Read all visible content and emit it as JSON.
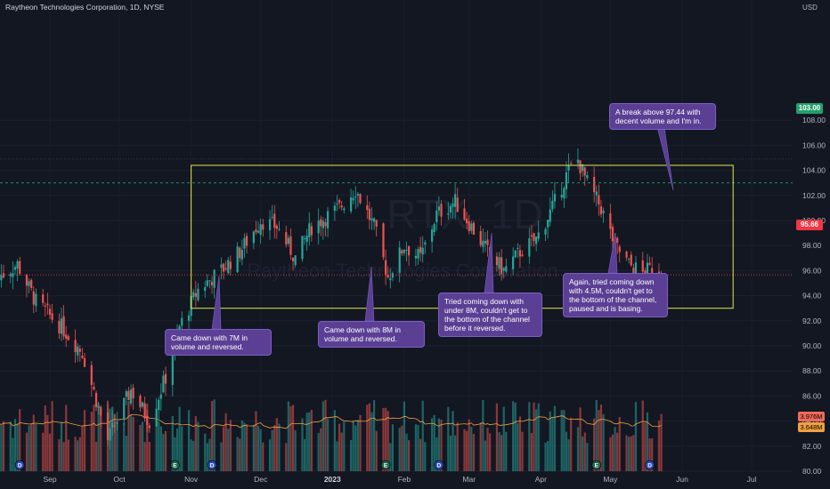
{
  "header": {
    "title": "Raytheon Technologies Corporation, 1D, NYSE"
  },
  "axis": {
    "currency": "USD"
  },
  "watermark": {
    "symbol": "RTX, 1D",
    "name": "Raytheon Technologies Corporation"
  },
  "price_tags": {
    "level": "103.00",
    "last": "95.66"
  },
  "volume_tags": {
    "volume": "3.976M",
    "volume_ma": "3.648M"
  },
  "colors": {
    "up": "#26a69a",
    "down": "#ef5350",
    "box": "#e5e84a",
    "note": "#5b3f94",
    "ma": "#f0a040"
  },
  "annotations": [
    {
      "text": "Came down with 7M in volume and reversed."
    },
    {
      "text": "Came down with 8M in volume and reversed."
    },
    {
      "text": "Tried coming down with under 8M, couldn't get to the bottom of the channel before it reversed."
    },
    {
      "text": "Again, tried coming down with 4.5M, couldn't get to the bottom of the channel, paused and is basing."
    },
    {
      "text": "A break above 97.44 with decent volume and I'm in."
    }
  ],
  "events": [
    {
      "label": "D",
      "x": "2022-08-19"
    },
    {
      "label": "E",
      "x": "2022-10-25"
    },
    {
      "label": "D",
      "x": "2022-11-10"
    },
    {
      "label": "E",
      "x": "2023-01-24"
    },
    {
      "label": "D",
      "x": "2023-02-16"
    },
    {
      "label": "E",
      "x": "2023-04-25"
    },
    {
      "label": "D",
      "x": "2023-05-18"
    }
  ],
  "chart_data": {
    "type": "candlestick",
    "y_ticks": [
      80,
      82,
      84,
      86,
      88,
      90,
      92,
      94,
      96,
      98,
      100,
      102,
      104,
      106,
      108
    ],
    "x_ticks": [
      {
        "label": "Sep",
        "date": "2022-09-01"
      },
      {
        "label": "Oct",
        "date": "2022-10-01"
      },
      {
        "label": "Nov",
        "date": "2022-11-01"
      },
      {
        "label": "Dec",
        "date": "2022-12-01"
      },
      {
        "label": "2023",
        "date": "2023-01-01"
      },
      {
        "label": "Feb",
        "date": "2023-02-01"
      },
      {
        "label": "Mar",
        "date": "2023-03-01"
      },
      {
        "label": "Apr",
        "date": "2023-04-01"
      },
      {
        "label": "May",
        "date": "2023-05-01"
      },
      {
        "label": "Jun",
        "date": "2023-06-01"
      },
      {
        "label": "Jul",
        "date": "2023-07-01"
      }
    ],
    "channel": {
      "top": 104.4,
      "bottom": 93.0,
      "start": "2022-11-01",
      "end": "2023-06-23"
    },
    "horizontal_lines": [
      {
        "price": 103.0
      },
      {
        "price": 95.66
      }
    ],
    "closes": [
      {
        "date": "2022-08-10",
        "close": 95.5
      },
      {
        "date": "2022-08-18",
        "close": 96.5
      },
      {
        "date": "2022-08-26",
        "close": 93.5
      },
      {
        "date": "2022-09-06",
        "close": 91.5
      },
      {
        "date": "2022-09-15",
        "close": 89.5
      },
      {
        "date": "2022-09-26",
        "close": 82.5
      },
      {
        "date": "2022-10-06",
        "close": 86.5
      },
      {
        "date": "2022-10-14",
        "close": 84.0
      },
      {
        "date": "2022-10-21",
        "close": 87.5
      },
      {
        "date": "2022-10-27",
        "close": 91.5
      },
      {
        "date": "2022-11-04",
        "close": 94.5
      },
      {
        "date": "2022-11-14",
        "close": 96.0
      },
      {
        "date": "2022-11-22",
        "close": 97.5
      },
      {
        "date": "2022-12-01",
        "close": 100.0
      },
      {
        "date": "2022-12-08",
        "close": 99.5
      },
      {
        "date": "2022-12-16",
        "close": 97.0
      },
      {
        "date": "2022-12-23",
        "close": 99.5
      },
      {
        "date": "2023-01-04",
        "close": 101.0
      },
      {
        "date": "2023-01-11",
        "close": 102.5
      },
      {
        "date": "2023-01-19",
        "close": 99.5
      },
      {
        "date": "2023-01-25",
        "close": 95.5
      },
      {
        "date": "2023-02-01",
        "close": 98.0
      },
      {
        "date": "2023-02-08",
        "close": 97.0
      },
      {
        "date": "2023-02-15",
        "close": 100.5
      },
      {
        "date": "2023-02-23",
        "close": 101.5
      },
      {
        "date": "2023-03-02",
        "close": 99.5
      },
      {
        "date": "2023-03-09",
        "close": 97.5
      },
      {
        "date": "2023-03-16",
        "close": 96.0
      },
      {
        "date": "2023-03-23",
        "close": 97.5
      },
      {
        "date": "2023-03-30",
        "close": 98.5
      },
      {
        "date": "2023-04-06",
        "close": 101.0
      },
      {
        "date": "2023-04-13",
        "close": 104.0
      },
      {
        "date": "2023-04-17",
        "close": 104.8
      },
      {
        "date": "2023-04-21",
        "close": 103.0
      },
      {
        "date": "2023-04-27",
        "close": 101.0
      },
      {
        "date": "2023-05-03",
        "close": 98.0
      },
      {
        "date": "2023-05-09",
        "close": 96.5
      },
      {
        "date": "2023-05-15",
        "close": 95.8
      },
      {
        "date": "2023-05-19",
        "close": 96.2
      },
      {
        "date": "2023-05-23",
        "close": 95.66
      }
    ]
  }
}
